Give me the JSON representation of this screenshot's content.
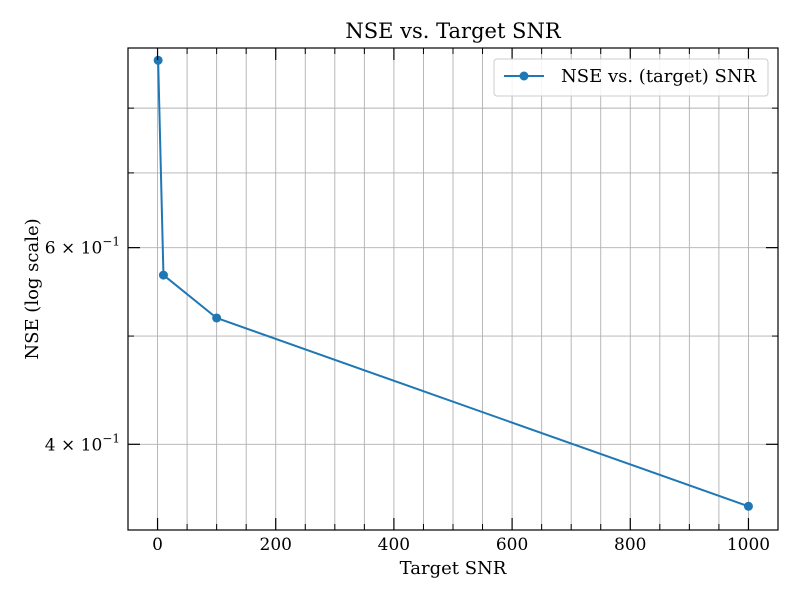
{
  "chart_data": {
    "type": "line",
    "title": "NSE vs. Target SNR",
    "xlabel": "Target SNR",
    "ylabel": "NSE (log scale)",
    "x_scale": "linear",
    "y_scale": "log",
    "xlim": [
      -50,
      1050
    ],
    "ylim": [
      0.3352,
      0.9056
    ],
    "grid": true,
    "legend_position": "top-right",
    "x_ticks": [
      {
        "value": 0,
        "label": "0"
      },
      {
        "value": 200,
        "label": "200"
      },
      {
        "value": 400,
        "label": "400"
      },
      {
        "value": 600,
        "label": "600"
      },
      {
        "value": 800,
        "label": "800"
      },
      {
        "value": 1000,
        "label": "1000"
      }
    ],
    "x_minor_ticks": [
      50,
      100,
      150,
      250,
      300,
      350,
      450,
      500,
      550,
      650,
      700,
      750,
      850,
      900,
      950
    ],
    "y_major_ticks": [
      {
        "value": 0.4,
        "base": "4 × 10",
        "exp": "−1"
      },
      {
        "value": 0.6,
        "base": "6 × 10",
        "exp": "−1"
      }
    ],
    "y_minor_ticks": [
      0.5,
      0.7,
      0.8
    ],
    "series": [
      {
        "name": "NSE vs. (target) SNR",
        "color": "#1f77b4",
        "marker": "circle",
        "x": [
          1,
          10,
          100,
          1000
        ],
        "y": [
          0.883,
          0.567,
          0.519,
          0.352
        ]
      }
    ]
  }
}
